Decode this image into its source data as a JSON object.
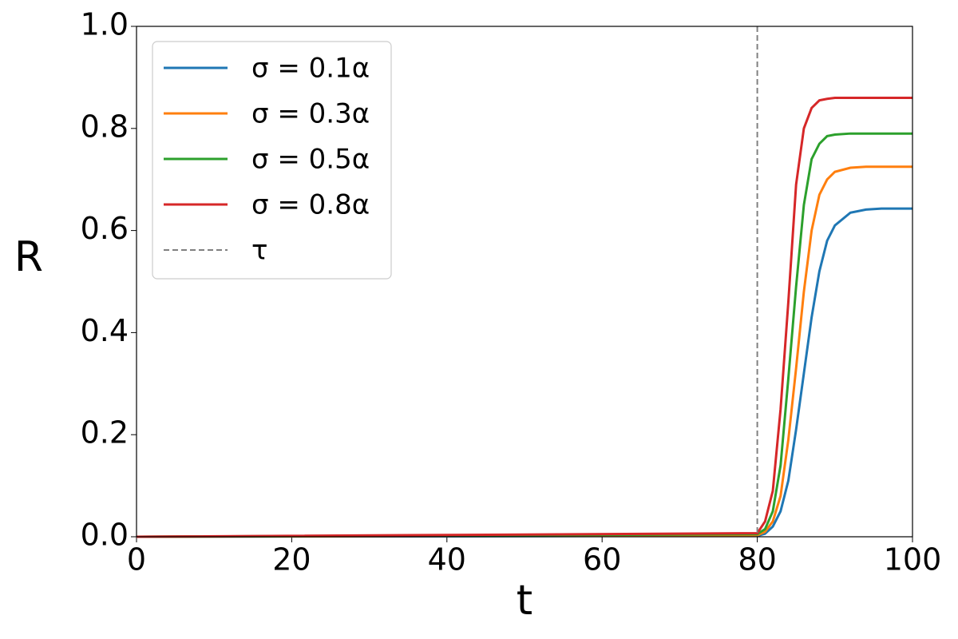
{
  "chart_data": {
    "type": "line",
    "x_label": "t",
    "y_label": "R",
    "x": [
      0,
      80,
      81,
      82,
      83,
      84,
      85,
      86,
      87,
      88,
      89,
      90,
      92,
      94,
      96,
      98,
      100
    ],
    "series": [
      {
        "name": "σ = 0.1α",
        "color": "#1f77b4",
        "values": [
          0,
          0.002,
          0.006,
          0.02,
          0.05,
          0.11,
          0.21,
          0.32,
          0.43,
          0.52,
          0.58,
          0.61,
          0.635,
          0.641,
          0.643,
          0.643,
          0.643
        ]
      },
      {
        "name": "σ = 0.3α",
        "color": "#ff7f0e",
        "values": [
          0,
          0.003,
          0.01,
          0.03,
          0.08,
          0.19,
          0.33,
          0.48,
          0.6,
          0.67,
          0.7,
          0.715,
          0.723,
          0.725,
          0.725,
          0.725,
          0.725
        ]
      },
      {
        "name": "σ = 0.5α",
        "color": "#2ca02c",
        "values": [
          0,
          0.005,
          0.015,
          0.05,
          0.14,
          0.31,
          0.49,
          0.65,
          0.74,
          0.77,
          0.785,
          0.788,
          0.79,
          0.79,
          0.79,
          0.79,
          0.79
        ]
      },
      {
        "name": "σ = 0.8α",
        "color": "#d62728",
        "values": [
          0,
          0.007,
          0.03,
          0.09,
          0.25,
          0.46,
          0.69,
          0.8,
          0.84,
          0.855,
          0.858,
          0.86,
          0.86,
          0.86,
          0.86,
          0.86,
          0.86
        ]
      }
    ],
    "vlines": [
      {
        "name": "τ",
        "x": 80,
        "color": "#808080"
      }
    ],
    "xlim": [
      0,
      100
    ],
    "xticks": [
      0,
      20,
      40,
      60,
      80,
      100
    ],
    "ylim": [
      0,
      1
    ],
    "yticks": [
      {
        "value": 0,
        "label": "0.0"
      },
      {
        "value": 0.2,
        "label": "0.2"
      },
      {
        "value": 0.4,
        "label": "0.4"
      },
      {
        "value": 0.6,
        "label": "0.6"
      },
      {
        "value": 0.8,
        "label": "0.8"
      },
      {
        "value": 1,
        "label": "1.0"
      }
    ],
    "legend": "upper-left",
    "grid": false
  }
}
